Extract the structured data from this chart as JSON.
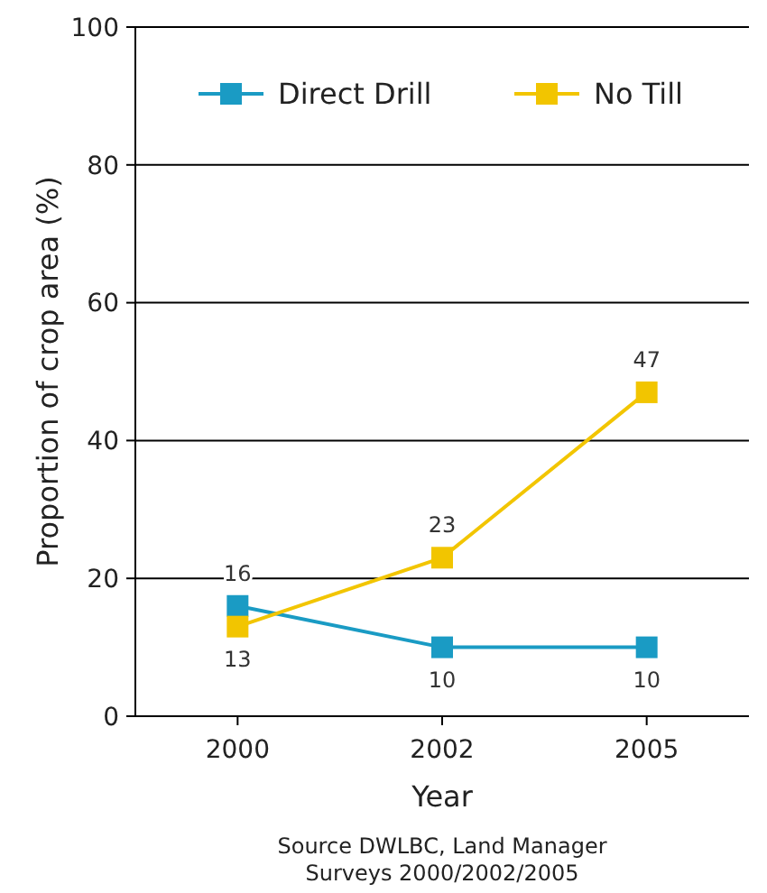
{
  "chart_data": {
    "type": "line",
    "categories": [
      "2000",
      "2002",
      "2005"
    ],
    "series": [
      {
        "name": "Direct Drill",
        "color": "#1a9bc4",
        "values": [
          16,
          10,
          10
        ]
      },
      {
        "name": "No Till",
        "color": "#f2c500",
        "values": [
          13,
          23,
          47
        ]
      }
    ],
    "ylim": [
      0,
      100
    ],
    "yticks": [
      0,
      20,
      40,
      60,
      80,
      100
    ],
    "grid": "y",
    "legend": "top",
    "marker": "square",
    "data_labels": true,
    "xlabel": "Year",
    "ylabel": "Proportion of crop area (%)",
    "annotations": [
      "Source DWLBC, Land Manager\nSurveys 2000/2002/2005"
    ]
  }
}
